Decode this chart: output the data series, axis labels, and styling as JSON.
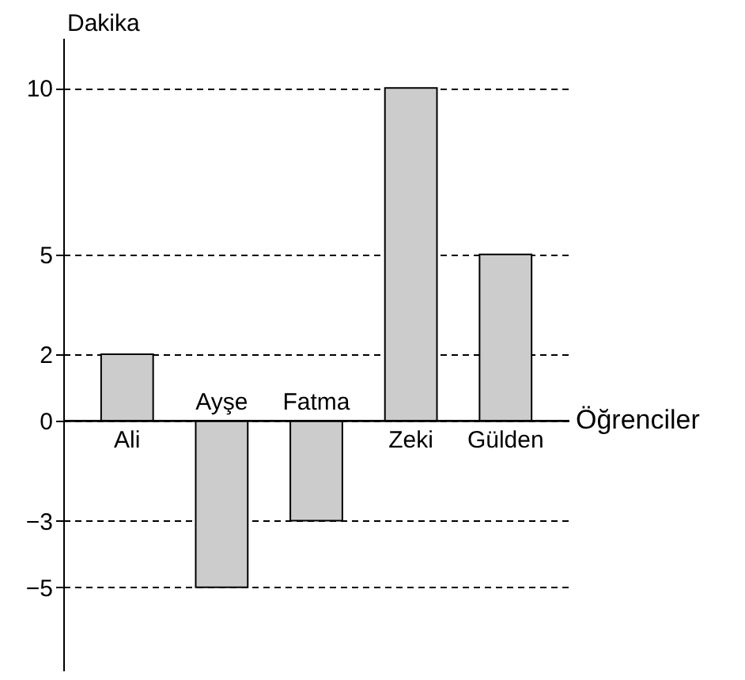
{
  "chart_data": {
    "type": "bar",
    "xlabel": "Öğrenciler",
    "ylabel": "Dakika",
    "categories": [
      "Ali",
      "Ayşe",
      "Fatma",
      "Zeki",
      "Gülden"
    ],
    "values": [
      2,
      -5,
      -3,
      10,
      5
    ],
    "color": "#cccccc",
    "ylim": [
      -7.5,
      11.5
    ],
    "yticks": [
      -5,
      -3,
      0,
      2,
      5,
      10
    ],
    "grid": "y",
    "line_style": "dashed"
  }
}
